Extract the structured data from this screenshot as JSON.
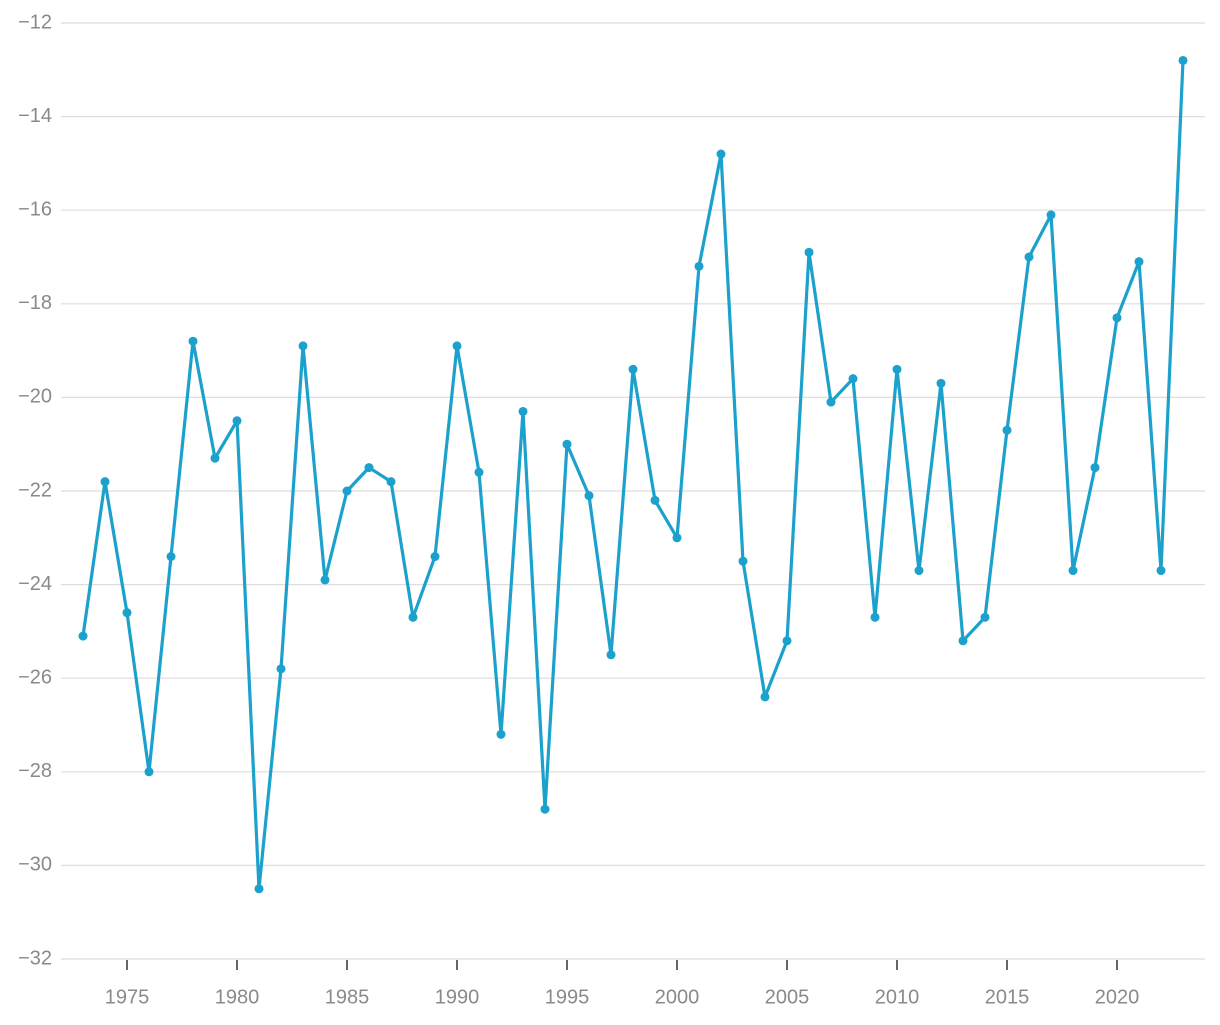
{
  "chart_data": {
    "type": "line",
    "x": [
      1973,
      1974,
      1975,
      1976,
      1977,
      1978,
      1979,
      1980,
      1981,
      1982,
      1983,
      1984,
      1985,
      1986,
      1987,
      1988,
      1989,
      1990,
      1991,
      1992,
      1993,
      1994,
      1995,
      1996,
      1997,
      1998,
      1999,
      2000,
      2001,
      2002,
      2003,
      2004,
      2005,
      2006,
      2007,
      2008,
      2009,
      2010,
      2011,
      2012,
      2013,
      2014,
      2015,
      2016,
      2017,
      2018,
      2019,
      2020,
      2021,
      2022,
      2023
    ],
    "values": [
      -25.1,
      -21.8,
      -24.6,
      -28.0,
      -23.4,
      -18.8,
      -21.3,
      -20.5,
      -30.5,
      -25.8,
      -18.9,
      -23.9,
      -22.0,
      -21.5,
      -21.8,
      -24.7,
      -23.4,
      -18.9,
      -21.6,
      -27.2,
      -20.3,
      -28.8,
      -21.0,
      -22.1,
      -25.5,
      -19.4,
      -22.2,
      -23.0,
      -17.2,
      -14.8,
      -23.5,
      -26.4,
      -25.2,
      -16.9,
      -20.1,
      -19.6,
      -24.7,
      -19.4,
      -23.7,
      -19.7,
      -25.2,
      -24.7,
      -20.7,
      -17.0,
      -16.1,
      -23.7,
      -21.5,
      -18.3,
      -17.1,
      -23.7,
      -12.8
    ],
    "color": "#1ba1cc",
    "xlim": [
      1972,
      2024
    ],
    "xticks": [
      1975,
      1980,
      1985,
      1990,
      1995,
      2000,
      2005,
      2010,
      2015,
      2020
    ],
    "ylim": [
      -32,
      -12
    ],
    "yticks": [
      {
        "value": -32,
        "label": "−32"
      },
      {
        "value": -30,
        "label": "−30"
      },
      {
        "value": -28,
        "label": "−28"
      },
      {
        "value": -26,
        "label": "−26"
      },
      {
        "value": -24,
        "label": "−24"
      },
      {
        "value": -22,
        "label": "−22"
      },
      {
        "value": -20,
        "label": "−20"
      },
      {
        "value": -18,
        "label": "−18"
      },
      {
        "value": -16,
        "label": "−16"
      },
      {
        "value": -14,
        "label": "−14"
      },
      {
        "value": -12,
        "label": "−12"
      }
    ],
    "grid": true
  }
}
